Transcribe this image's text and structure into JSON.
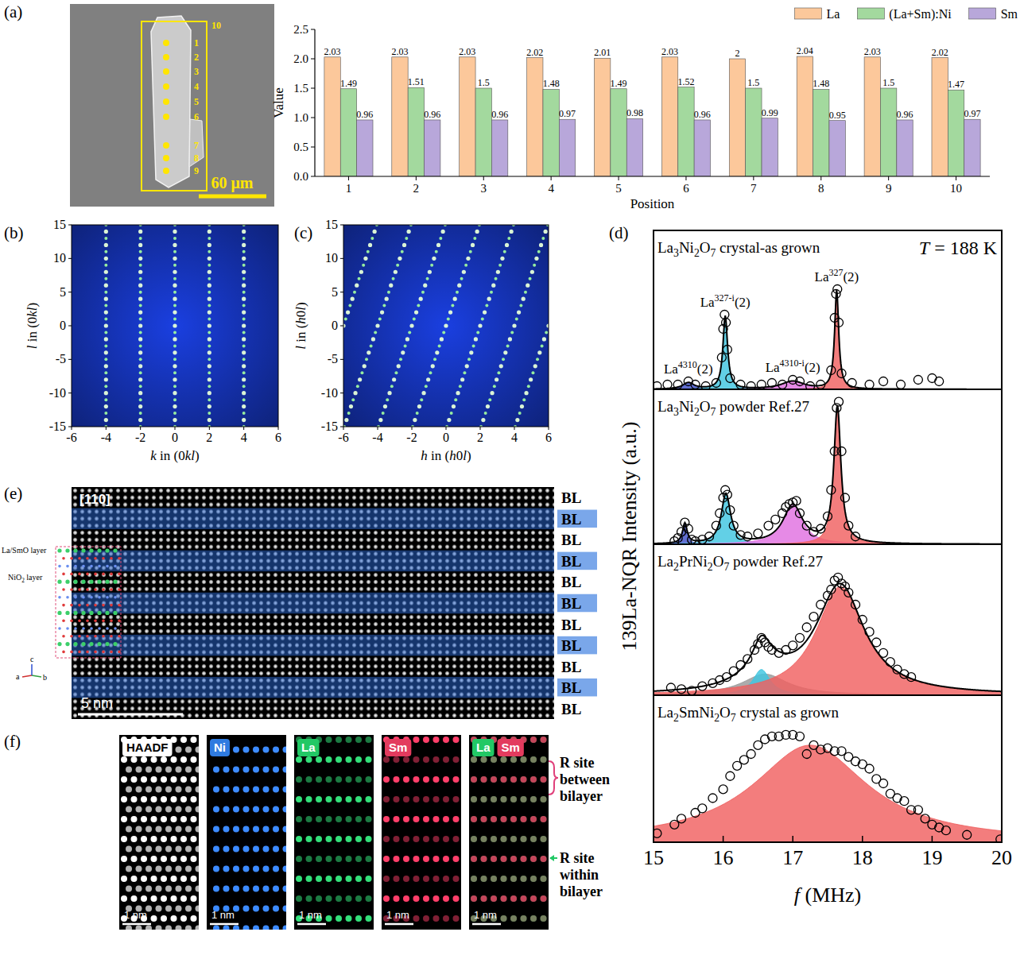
{
  "figure": {
    "panel_labels": [
      "(a)",
      "(b)",
      "(c)",
      "(d)",
      "(e)",
      "(f)"
    ]
  },
  "photo_a": {
    "points": [
      "1",
      "2",
      "3",
      "4",
      "5",
      "6",
      "7",
      "8",
      "9"
    ],
    "frame_label": "10",
    "scale_bar": "60 μm"
  },
  "chart_data": [
    {
      "type": "bar",
      "xlabel": "Position",
      "ylabel": "Value",
      "categories": [
        "1",
        "2",
        "3",
        "4",
        "5",
        "6",
        "7",
        "8",
        "9",
        "10"
      ],
      "series": [
        {
          "name": "La",
          "color": "#fcc89b",
          "values": [
            2.03,
            2.03,
            2.03,
            2.02,
            2.01,
            2.03,
            2,
            2.04,
            2.03,
            2.02
          ]
        },
        {
          "name": "(La+Sm):Ni",
          "color": "#a3d99e",
          "values": [
            1.49,
            1.51,
            1.5,
            1.48,
            1.49,
            1.52,
            1.5,
            1.48,
            1.5,
            1.47
          ]
        },
        {
          "name": "Sm",
          "color": "#b8a7da",
          "values": [
            0.96,
            0.96,
            0.96,
            0.97,
            0.98,
            0.96,
            0.99,
            0.95,
            0.96,
            0.97
          ]
        }
      ],
      "ylim": [
        0,
        2.5
      ],
      "yticks": [
        {
          "value": 0,
          "label": "0.0"
        },
        0.5,
        {
          "value": 1,
          "label": "1.0"
        },
        1.5,
        {
          "value": 2,
          "label": "2.0"
        },
        2.5
      ],
      "data_labels": true,
      "legend": "top-right"
    },
    {
      "type": "image",
      "xlabel": "k in (0kl)",
      "ylabel": "l in (0kl)",
      "xlim": [
        -6,
        6
      ],
      "ylim": [
        -15,
        15
      ],
      "xticks": [
        -6,
        -4,
        -2,
        0,
        2,
        4,
        6
      ],
      "yticks": [
        -15,
        -10,
        -5,
        0,
        5,
        10,
        15
      ],
      "spot_columns": [
        -4,
        -2,
        0,
        2,
        4
      ],
      "tilt": 0,
      "color": "#1a3fe0"
    },
    {
      "type": "image",
      "xlabel": "h in (h0l)",
      "ylabel": "l in (h0l)",
      "xlim": [
        -6,
        6
      ],
      "ylim": [
        -15,
        15
      ],
      "xticks": [
        -6,
        -4,
        -2,
        0,
        2,
        4,
        6
      ],
      "yticks": [
        -15,
        -10,
        -5,
        0,
        5,
        10,
        15
      ],
      "spot_columns": [
        -6,
        -4,
        -2,
        0,
        2,
        4,
        6
      ],
      "tilt": 0.13,
      "color": "#1a3fe0"
    },
    {
      "type": "line",
      "xlabel": "f (MHz)",
      "ylabel": "139La-NQR Intensity (a.u.)",
      "xlim": [
        15,
        20
      ],
      "xticks": [
        15,
        16,
        17,
        18,
        19,
        20
      ],
      "tick_labels": "x",
      "marker": "circle",
      "panels": [
        {
          "title": "La3Ni2O7 crystal-as grown",
          "annotation": "T = 188 K",
          "ylim": [
            0,
            1
          ],
          "x": [
            15.05,
            15.2,
            15.35,
            15.5,
            15.6,
            15.75,
            15.9,
            15.98,
            16.0,
            16.02,
            16.04,
            16.06,
            16.1,
            16.25,
            16.4,
            16.55,
            16.7,
            16.85,
            17.0,
            17.1,
            17.25,
            17.4,
            17.55,
            17.6,
            17.62,
            17.64,
            17.66,
            17.7,
            17.85,
            18.1,
            18.3,
            18.55,
            18.8,
            19.0,
            19.1
          ],
          "values": [
            0.02,
            0.03,
            0.03,
            0.05,
            0.03,
            0.02,
            0.04,
            0.2,
            0.38,
            0.47,
            0.42,
            0.25,
            0.07,
            0.03,
            0.02,
            0.03,
            0.04,
            0.03,
            0.06,
            0.05,
            0.02,
            0.03,
            0.12,
            0.45,
            0.6,
            0.63,
            0.42,
            0.1,
            0.04,
            0.03,
            0.05,
            0.03,
            0.06,
            0.07,
            0.05
          ],
          "peaks": [
            {
              "label": {
                "base": "La",
                "sup": "4310",
                "tail": "(2)"
              },
              "center": 15.5,
              "width": 0.1,
              "height": 0.04,
              "color": "#3f4fc8"
            },
            {
              "label": {
                "base": "La",
                "sup": "327-i",
                "tail": "(2)"
              },
              "center": 16.03,
              "width": 0.04,
              "height": 0.46,
              "color": "#3fc6e0"
            },
            {
              "label": {
                "base": "La",
                "sup": "4310-i",
                "tail": "(2)"
              },
              "center": 17.0,
              "width": 0.2,
              "height": 0.05,
              "color": "#e070e0"
            },
            {
              "label": {
                "base": "La",
                "sup": "327",
                "tail": "(2)"
              },
              "center": 17.63,
              "width": 0.035,
              "height": 0.62,
              "color": "#f06060"
            }
          ]
        },
        {
          "title": "La3Ni2O7 powder Ref.27",
          "ylim": [
            0,
            1
          ],
          "x": [
            15.3,
            15.35,
            15.4,
            15.45,
            15.5,
            15.55,
            15.6,
            15.7,
            15.8,
            15.9,
            15.95,
            16.0,
            16.03,
            16.06,
            16.1,
            16.15,
            16.25,
            16.35,
            16.5,
            16.65,
            16.75,
            16.85,
            16.9,
            16.95,
            17.0,
            17.05,
            17.1,
            17.2,
            17.3,
            17.4,
            17.5,
            17.55,
            17.6,
            17.63,
            17.66,
            17.7,
            17.75,
            17.8,
            17.9
          ],
          "values": [
            0.02,
            0.04,
            0.08,
            0.14,
            0.1,
            0.03,
            0.02,
            0.03,
            0.05,
            0.12,
            0.2,
            0.3,
            0.35,
            0.32,
            0.22,
            0.12,
            0.06,
            0.05,
            0.07,
            0.12,
            0.16,
            0.2,
            0.24,
            0.26,
            0.27,
            0.28,
            0.2,
            0.12,
            0.08,
            0.1,
            0.18,
            0.35,
            0.6,
            0.88,
            0.92,
            0.6,
            0.3,
            0.12,
            0.05
          ],
          "peaks": [
            {
              "center": 15.45,
              "width": 0.04,
              "height": 0.13,
              "color": "#3f4fc8"
            },
            {
              "center": 16.04,
              "width": 0.08,
              "height": 0.32,
              "color": "#3fc6e0"
            },
            {
              "center": 17.0,
              "width": 0.17,
              "height": 0.25,
              "color": "#e070e0"
            },
            {
              "center": 17.64,
              "width": 0.06,
              "height": 0.88,
              "color": "#f06060"
            }
          ]
        },
        {
          "title": "La2PrNi2O7 powder Ref.27",
          "ylim": [
            0,
            1
          ],
          "x": [
            15.25,
            15.4,
            15.55,
            15.7,
            15.85,
            15.95,
            16.05,
            16.15,
            16.25,
            16.35,
            16.45,
            16.5,
            16.55,
            16.6,
            16.65,
            16.7,
            16.8,
            16.9,
            17.0,
            17.1,
            17.2,
            17.3,
            17.4,
            17.5,
            17.55,
            17.6,
            17.65,
            17.7,
            17.75,
            17.8,
            17.9,
            18.0,
            18.1,
            18.2,
            18.3,
            18.4,
            18.5,
            18.6,
            18.7
          ],
          "values": [
            0.05,
            0.04,
            0.03,
            0.06,
            0.08,
            0.1,
            0.12,
            0.16,
            0.2,
            0.24,
            0.3,
            0.34,
            0.38,
            0.35,
            0.32,
            0.3,
            0.28,
            0.3,
            0.33,
            0.38,
            0.45,
            0.52,
            0.6,
            0.66,
            0.7,
            0.76,
            0.78,
            0.74,
            0.72,
            0.68,
            0.6,
            0.5,
            0.42,
            0.35,
            0.28,
            0.22,
            0.17,
            0.14,
            0.12
          ],
          "peaks": [
            {
              "center": 16.6,
              "width": 0.4,
              "height": 0.14,
              "color": "#9a9a9a"
            },
            {
              "center": 16.55,
              "width": 0.15,
              "height": 0.17,
              "color": "#3fc6e0"
            },
            {
              "center": 17.68,
              "width": 0.42,
              "height": 0.72,
              "color": "#f06060"
            }
          ]
        },
        {
          "title": "La2SmNi2O7 crystal as grown",
          "ylim": [
            0,
            1
          ],
          "x": [
            15.05,
            15.3,
            15.4,
            15.6,
            15.7,
            15.85,
            16.0,
            16.1,
            16.2,
            16.3,
            16.4,
            16.5,
            16.6,
            16.7,
            16.8,
            16.9,
            17.0,
            17.1,
            17.2,
            17.3,
            17.4,
            17.5,
            17.6,
            17.7,
            17.8,
            17.9,
            18.0,
            18.1,
            18.2,
            18.3,
            18.4,
            18.5,
            18.6,
            18.7,
            18.8,
            18.9,
            19.0,
            19.1,
            19.2,
            19.5,
            19.98
          ],
          "values": [
            0.06,
            0.12,
            0.16,
            0.2,
            0.23,
            0.3,
            0.36,
            0.45,
            0.52,
            0.56,
            0.6,
            0.66,
            0.7,
            0.72,
            0.72,
            0.73,
            0.73,
            0.72,
            0.6,
            0.66,
            0.63,
            0.64,
            0.62,
            0.62,
            0.58,
            0.55,
            0.53,
            0.5,
            0.43,
            0.4,
            0.33,
            0.3,
            0.28,
            0.22,
            0.22,
            0.16,
            0.12,
            0.1,
            0.08,
            0.05,
            0.02
          ],
          "peaks": [
            {
              "center": 17.25,
              "width": 1.0,
              "height": 0.66,
              "color": "#f06060"
            }
          ]
        }
      ]
    }
  ],
  "stem_e": {
    "orientation_label": "[110]",
    "bl_labels": [
      {
        "text": "BL",
        "highlight": false
      },
      {
        "text": "BL",
        "highlight": true
      },
      {
        "text": "BL",
        "highlight": false
      },
      {
        "text": "BL",
        "highlight": true
      },
      {
        "text": "BL",
        "highlight": false
      },
      {
        "text": "BL",
        "highlight": true
      },
      {
        "text": "BL",
        "highlight": false
      },
      {
        "text": "BL",
        "highlight": true
      },
      {
        "text": "BL",
        "highlight": false
      },
      {
        "text": "BL",
        "highlight": true
      },
      {
        "text": "BL",
        "highlight": false
      }
    ],
    "layer_labels": [
      "La/SmO layer",
      "NiO2 layer"
    ],
    "axes": [
      "a",
      "b",
      "c"
    ],
    "scale_bar": "5 nm"
  },
  "maps_f": {
    "tiles": [
      {
        "label": [
          "HAADF"
        ]
      },
      {
        "label": [
          "Ni"
        ]
      },
      {
        "label": [
          "La"
        ]
      },
      {
        "label": [
          "Sm"
        ]
      },
      {
        "label": [
          "La",
          "Sm"
        ]
      }
    ],
    "scale_bar": "1 nm",
    "notes": [
      "R site between bilayer",
      "R site within bilayer"
    ]
  }
}
